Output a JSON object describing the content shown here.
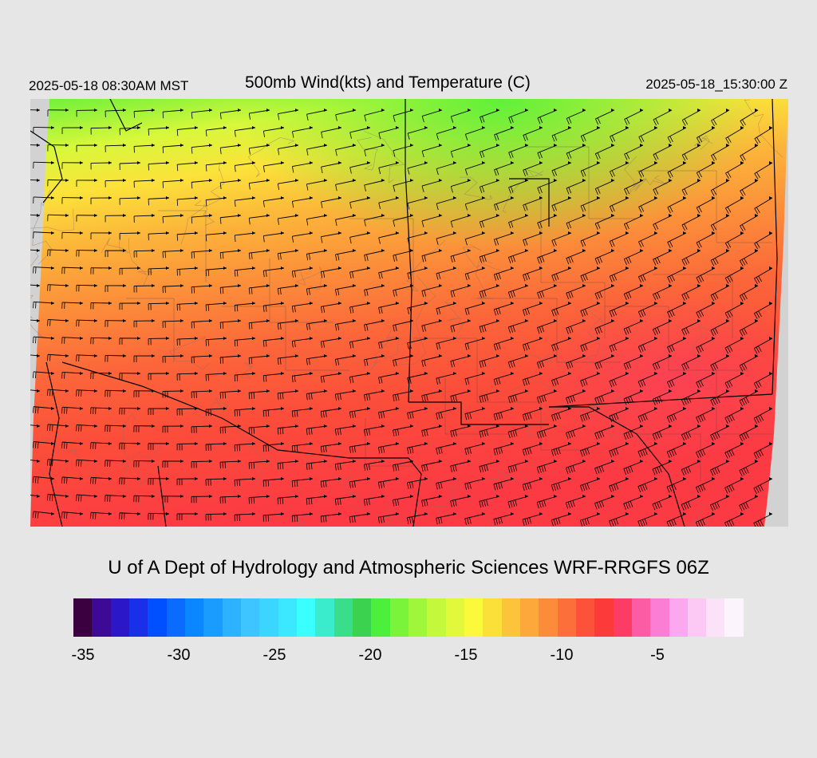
{
  "header": {
    "valid_local": "2025-05-18 08:30AM MST",
    "title": "500mb Wind(kts) and Temperature (C)",
    "valid_utc": "2025-05-18_15:30:00 Z"
  },
  "footer": {
    "credit": "U of A Dept of Hydrology and Atmospheric Sciences WRF-RRGFS 06Z"
  },
  "colorbar": {
    "colors": [
      "#3a0040",
      "#3c0a96",
      "#2b17c8",
      "#1a2fe8",
      "#0050ff",
      "#0a6cff",
      "#0a86ff",
      "#1a9cff",
      "#2cb2ff",
      "#3ec4ff",
      "#3ad6ff",
      "#3ae8ff",
      "#3affff",
      "#3aeccc",
      "#3ade8a",
      "#3ad24e",
      "#4cf03a",
      "#7af43a",
      "#a0f63a",
      "#c4f83a",
      "#e2f83a",
      "#fcf83a",
      "#fce03a",
      "#fcc43a",
      "#fca83a",
      "#fc8c3a",
      "#fc6e3a",
      "#fc523a",
      "#fc3a3a",
      "#fc3c64",
      "#fc5ca4",
      "#fc7ed4",
      "#fca8f0",
      "#fcc8f4",
      "#fce2f8",
      "#fcf4fc"
    ],
    "ticks": [
      {
        "value": -35,
        "label": "-35"
      },
      {
        "value": -30,
        "label": "-30"
      },
      {
        "value": -25,
        "label": "-25"
      },
      {
        "value": -20,
        "label": "-20"
      },
      {
        "value": -15,
        "label": "-15"
      },
      {
        "value": -10,
        "label": "-10"
      },
      {
        "value": -5,
        "label": "-5"
      }
    ],
    "min": -36,
    "max": -1
  },
  "map": {
    "background_color": "#d2d2d2",
    "temperature_gradient": [
      {
        "stop": 0.0,
        "color": "#6cf03a"
      },
      {
        "stop": 0.12,
        "color": "#d8f83a"
      },
      {
        "stop": 0.22,
        "color": "#fce23a"
      },
      {
        "stop": 0.34,
        "color": "#fcb43a"
      },
      {
        "stop": 0.48,
        "color": "#fc8c3a"
      },
      {
        "stop": 0.62,
        "color": "#fc663a"
      },
      {
        "stop": 0.78,
        "color": "#fc4c3a"
      },
      {
        "stop": 1.0,
        "color": "#fc3a44"
      }
    ]
  }
}
